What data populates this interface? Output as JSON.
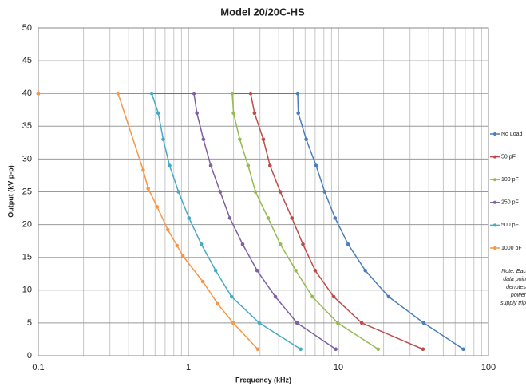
{
  "chart_data": {
    "type": "line",
    "title": "Model  20/20C-HS",
    "xlabel": "Frequency (kHz)",
    "ylabel": "Output (kV p-p)",
    "xscale": "log",
    "xlim": [
      0.1,
      100
    ],
    "xticks": [
      0.1,
      1,
      10,
      100
    ],
    "ylim": [
      0,
      50
    ],
    "yticks": [
      0,
      5,
      10,
      15,
      20,
      25,
      30,
      35,
      40,
      45,
      50
    ],
    "grid": true,
    "legend": "right",
    "series": [
      {
        "name": "No Load",
        "color": "#4a7ebb",
        "x": [
          0.1,
          5.35,
          5.4,
          6.1,
          7.1,
          8.1,
          9.5,
          11.6,
          15.1,
          21.6,
          37,
          68
        ],
        "values": [
          40,
          40,
          37,
          33,
          29,
          25,
          21,
          17,
          13,
          9,
          5,
          1
        ]
      },
      {
        "name": "50 pF",
        "color": "#be4b48",
        "x": [
          0.1,
          2.6,
          2.76,
          3.16,
          3.5,
          4.1,
          4.9,
          5.8,
          7.0,
          9.3,
          14.3,
          36.6
        ],
        "values": [
          40,
          40,
          37,
          33,
          29,
          25,
          21,
          17,
          13,
          9,
          5,
          1
        ]
      },
      {
        "name": "100 pF",
        "color": "#98b954",
        "x": [
          0.1,
          1.96,
          2.0,
          2.2,
          2.5,
          2.8,
          3.4,
          4.1,
          5.2,
          6.7,
          9.9,
          18.4
        ],
        "values": [
          40,
          40,
          37,
          33,
          29,
          25,
          21,
          17,
          13,
          9,
          5,
          1
        ]
      },
      {
        "name": "250 pF",
        "color": "#7d60a0",
        "x": [
          0.1,
          1.09,
          1.14,
          1.26,
          1.41,
          1.63,
          1.89,
          2.3,
          2.87,
          3.8,
          5.3,
          9.6
        ],
        "values": [
          40,
          40,
          37,
          33,
          29,
          25,
          21,
          17,
          13,
          9,
          5,
          1
        ]
      },
      {
        "name": "500 pF",
        "color": "#46aac5",
        "x": [
          0.1,
          0.57,
          0.63,
          0.68,
          0.75,
          0.86,
          1.01,
          1.22,
          1.52,
          1.94,
          2.97,
          5.6
        ],
        "values": [
          40,
          40,
          37,
          33,
          29,
          25,
          21,
          17,
          13,
          9,
          5,
          1
        ]
      },
      {
        "name": "1000 pF",
        "color": "#f79646",
        "x": [
          0.1,
          0.34,
          0.5,
          0.54,
          0.62,
          0.73,
          0.84,
          0.92,
          1.25,
          1.57,
          1.99,
          2.9
        ],
        "values": [
          40,
          40,
          28.3,
          25.5,
          22.7,
          19.2,
          16.8,
          15.2,
          11.3,
          7.9,
          5,
          1
        ]
      }
    ],
    "annotation": [
      "Note: Eac",
      "data poin",
      "denotes",
      "power",
      "supply trip"
    ]
  }
}
